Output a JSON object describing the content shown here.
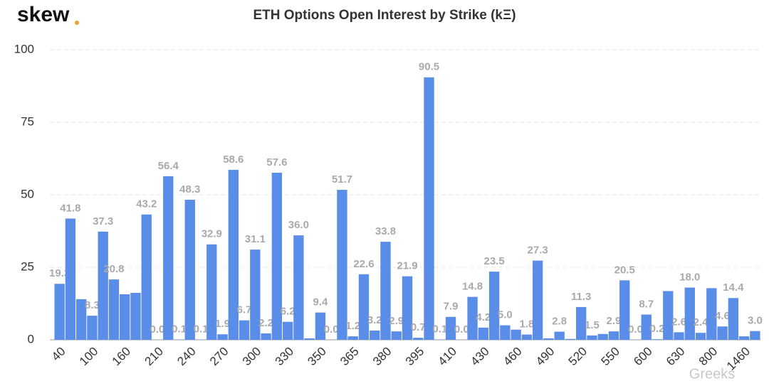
{
  "chart_data": {
    "type": "bar",
    "logo": "skew",
    "title": "ETH Options Open Interest by Strike (kΞ)",
    "watermark": "Greeks",
    "color": "#5a8de8",
    "grid": true,
    "ylim": [
      0,
      100
    ],
    "yticks": [
      0,
      25,
      50,
      75,
      100
    ],
    "categories": [
      "40",
      null,
      null,
      "100",
      null,
      null,
      "160",
      null,
      null,
      "210",
      null,
      null,
      "240",
      null,
      null,
      "270",
      null,
      null,
      "300",
      null,
      null,
      "330",
      null,
      null,
      "350",
      null,
      null,
      "365",
      null,
      null,
      "380",
      null,
      null,
      "395",
      null,
      null,
      "410",
      null,
      null,
      "430",
      null,
      null,
      "460",
      null,
      null,
      "490",
      null,
      null,
      "520",
      null,
      null,
      "550",
      null,
      null,
      "600",
      null,
      null,
      "630",
      null,
      null,
      "800",
      null,
      null,
      "1460",
      null
    ],
    "values": [
      19.3,
      41.8,
      14.0,
      8.3,
      37.3,
      20.8,
      15.7,
      16.2,
      43.2,
      0,
      56.4,
      0.1,
      48.3,
      0.1,
      32.9,
      1.9,
      58.6,
      6.7,
      31.1,
      2.2,
      57.6,
      6.2,
      36.0,
      0.5,
      9.4,
      0,
      51.7,
      1.2,
      22.6,
      3.2,
      33.8,
      2.9,
      21.9,
      0.7,
      90.5,
      0.1,
      7.9,
      0,
      14.8,
      4.2,
      23.5,
      5.0,
      3.5,
      1.8,
      27.3,
      0.5,
      2.8,
      0.3,
      11.3,
      1.5,
      2.0,
      2.9,
      20.5,
      0,
      8.7,
      0.2,
      16.8,
      2.6,
      18.0,
      2.4,
      17.8,
      4.6,
      14.4,
      1.2,
      3.0
    ],
    "value_labels": [
      "19.3",
      "41.8",
      null,
      "8.3",
      "37.3",
      "20.8",
      null,
      null,
      "43.2",
      "0.0",
      "56.4",
      "0.1",
      "48.3",
      "0.1",
      "32.9",
      "1.9",
      "58.6",
      "6.7",
      "31.1",
      "2.2",
      "57.6",
      "6.2",
      "36.0",
      null,
      "9.4",
      "0.0",
      "51.7",
      "1.2",
      "22.6",
      "3.2",
      "33.8",
      "2.9",
      "21.9",
      "0.7",
      "90.5",
      "0.1",
      "7.9",
      "0.0",
      "14.8",
      "4.2",
      "23.5",
      "5.0",
      null,
      "1.8",
      "27.3",
      null,
      "2.8",
      null,
      "11.3",
      "1.5",
      null,
      "2.9",
      "20.5",
      "0.0",
      "8.7",
      "0.2",
      null,
      "2.6",
      "18.0",
      "2.4",
      null,
      "4.6",
      "14.4",
      null,
      "3.0"
    ]
  }
}
